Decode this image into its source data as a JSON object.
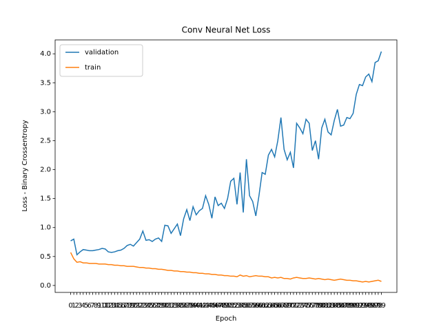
{
  "chart_data": {
    "type": "line",
    "title": "Conv Neural Net Loss",
    "x_label": "Epoch",
    "y_label": "Loss - Binary Crossentropy",
    "categories": [
      "0",
      "1",
      "2",
      "3",
      "4",
      "5",
      "6",
      "7",
      "8",
      "9",
      "10",
      "11",
      "12",
      "13",
      "14",
      "15",
      "16",
      "17",
      "18",
      "19",
      "20",
      "21",
      "22",
      "23",
      "24",
      "25",
      "26",
      "27",
      "28",
      "29",
      "30",
      "31",
      "32",
      "33",
      "34",
      "35",
      "36",
      "37",
      "38",
      "39",
      "40",
      "41",
      "42",
      "43",
      "44",
      "45",
      "46",
      "47",
      "48",
      "49",
      "50",
      "51",
      "52",
      "53",
      "54",
      "55",
      "56",
      "57",
      "58",
      "59",
      "60",
      "61",
      "62",
      "63",
      "64",
      "65",
      "66",
      "67",
      "68",
      "69",
      "70",
      "71",
      "72",
      "73",
      "74",
      "75",
      "76",
      "77",
      "78",
      "79",
      "80",
      "81",
      "82",
      "83",
      "84",
      "85",
      "86",
      "87",
      "88",
      "89",
      "90",
      "91",
      "92",
      "93",
      "94",
      "95",
      "96",
      "97",
      "98",
      "99"
    ],
    "series": [
      {
        "name": "validation",
        "color": "#1f77b4",
        "values": [
          0.77,
          0.8,
          0.53,
          0.58,
          0.62,
          0.61,
          0.6,
          0.6,
          0.61,
          0.62,
          0.64,
          0.63,
          0.58,
          0.57,
          0.58,
          0.6,
          0.61,
          0.64,
          0.69,
          0.71,
          0.68,
          0.74,
          0.8,
          0.94,
          0.78,
          0.79,
          0.76,
          0.8,
          0.82,
          0.76,
          1.04,
          1.03,
          0.9,
          0.98,
          1.06,
          0.86,
          1.15,
          1.31,
          1.12,
          1.36,
          1.22,
          1.29,
          1.33,
          1.55,
          1.4,
          1.16,
          1.53,
          1.38,
          1.42,
          1.33,
          1.5,
          1.8,
          1.85,
          1.4,
          1.95,
          1.26,
          2.18,
          1.55,
          1.45,
          1.2,
          1.55,
          1.95,
          1.92,
          2.25,
          2.35,
          2.22,
          2.5,
          2.9,
          2.35,
          2.17,
          2.3,
          2.03,
          2.8,
          2.72,
          2.62,
          2.87,
          2.8,
          2.33,
          2.5,
          2.18,
          2.72,
          2.87,
          2.65,
          2.6,
          2.85,
          3.04,
          2.75,
          2.77,
          2.9,
          2.88,
          2.97,
          3.3,
          3.47,
          3.45,
          3.6,
          3.65,
          3.52,
          3.85,
          3.88,
          4.04
        ]
      },
      {
        "name": "train",
        "color": "#ff7f0e",
        "values": [
          0.57,
          0.46,
          0.4,
          0.41,
          0.39,
          0.39,
          0.38,
          0.38,
          0.38,
          0.37,
          0.37,
          0.37,
          0.36,
          0.36,
          0.35,
          0.35,
          0.34,
          0.34,
          0.33,
          0.33,
          0.33,
          0.32,
          0.31,
          0.31,
          0.3,
          0.3,
          0.29,
          0.29,
          0.28,
          0.28,
          0.27,
          0.26,
          0.26,
          0.25,
          0.25,
          0.24,
          0.24,
          0.23,
          0.23,
          0.22,
          0.22,
          0.21,
          0.21,
          0.2,
          0.2,
          0.19,
          0.19,
          0.18,
          0.18,
          0.17,
          0.17,
          0.16,
          0.16,
          0.15,
          0.18,
          0.16,
          0.17,
          0.15,
          0.16,
          0.17,
          0.16,
          0.16,
          0.15,
          0.15,
          0.13,
          0.14,
          0.13,
          0.14,
          0.12,
          0.12,
          0.11,
          0.13,
          0.14,
          0.13,
          0.12,
          0.12,
          0.13,
          0.12,
          0.11,
          0.12,
          0.11,
          0.1,
          0.11,
          0.1,
          0.09,
          0.1,
          0.11,
          0.1,
          0.09,
          0.09,
          0.08,
          0.08,
          0.07,
          0.06,
          0.07,
          0.06,
          0.07,
          0.08,
          0.09,
          0.07
        ]
      }
    ],
    "ylim": [
      -0.12,
      4.24
    ],
    "yticks": [
      {
        "value": 0,
        "label": "0.0"
      },
      {
        "value": 0.5,
        "label": "0.5"
      },
      {
        "value": 1,
        "label": "1.0"
      },
      {
        "value": 1.5,
        "label": "1.5"
      },
      {
        "value": 2,
        "label": "2.0"
      },
      {
        "value": 2.5,
        "label": "2.5"
      },
      {
        "value": 3,
        "label": "3.0"
      },
      {
        "value": 3.5,
        "label": "3.5"
      },
      {
        "value": 4,
        "label": "4.0"
      }
    ],
    "legend": "upper left"
  }
}
